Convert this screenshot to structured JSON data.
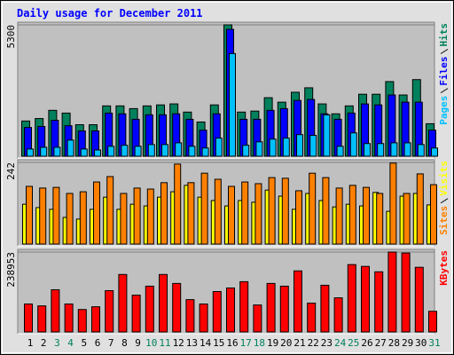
{
  "chart_data": {
    "type": "bar",
    "title": "Daily usage for December 2011",
    "categories": [
      "1",
      "2",
      "3",
      "4",
      "5",
      "6",
      "7",
      "8",
      "9",
      "10",
      "11",
      "12",
      "13",
      "14",
      "15",
      "16",
      "17",
      "18",
      "19",
      "20",
      "21",
      "22",
      "23",
      "24",
      "25",
      "26",
      "27",
      "28",
      "29",
      "30",
      "31"
    ],
    "category_colors": [
      "#000000",
      "#000000",
      "#00805c",
      "#00805c",
      "#000000",
      "#000000",
      "#000000",
      "#000000",
      "#000000",
      "#00805c",
      "#00805c",
      "#000000",
      "#000000",
      "#000000",
      "#000000",
      "#000000",
      "#00805c",
      "#00805c",
      "#000000",
      "#000000",
      "#000000",
      "#000000",
      "#000000",
      "#00805c",
      "#00805c",
      "#000000",
      "#000000",
      "#000000",
      "#000000",
      "#000000",
      "#00805c"
    ],
    "panels": [
      {
        "ylim": [
          0,
          5300
        ],
        "yticks": [
          5300
        ],
        "series": [
          {
            "name": "Pages",
            "color": "#00c0ff",
            "values": [
              290,
              360,
              360,
              650,
              290,
              250,
              400,
              440,
              400,
              470,
              470,
              540,
              400,
              330,
              730,
              4140,
              440,
              580,
              690,
              730,
              870,
              840,
              1670,
              400,
              940,
              510,
              510,
              540,
              540,
              470,
              330
            ]
          },
          {
            "name": "Files",
            "color": "#0000ff",
            "values": [
              1160,
              1200,
              1450,
              1230,
              1020,
              1020,
              1740,
              1710,
              1490,
              1670,
              1670,
              1710,
              1490,
              1050,
              1710,
              5120,
              1490,
              1490,
              1850,
              1920,
              2250,
              2290,
              1710,
              1490,
              1740,
              2110,
              2070,
              2470,
              2180,
              2180,
              1050
            ]
          },
          {
            "name": "Hits",
            "color": "#00805c",
            "values": [
              1420,
              1520,
              1850,
              1740,
              1270,
              1270,
              2030,
              2030,
              1920,
              2030,
              2070,
              2110,
              1780,
              1380,
              2070,
              5300,
              1780,
              1820,
              2360,
              2180,
              2580,
              2760,
              2110,
              1710,
              2030,
              2500,
              2500,
              3010,
              2470,
              3090,
              1310
            ]
          }
        ]
      },
      {
        "ylim": [
          0,
          242
        ],
        "yticks": [
          242
        ],
        "series": [
          {
            "name": "Sites",
            "color": "#ff8000",
            "values": [
              171,
              166,
              168,
              150,
              155,
              184,
              200,
              150,
              166,
              163,
              182,
              237,
              182,
              210,
              192,
              171,
              184,
              179,
              197,
              195,
              158,
              210,
              197,
              166,
              174,
              168,
              150,
              240,
              150,
              208,
              176
            ]
          },
          {
            "name": "Visits",
            "color": "#ffff00",
            "values": [
              118,
              108,
              103,
              79,
              74,
              103,
              139,
              103,
              118,
              113,
              139,
              155,
              174,
              139,
              129,
              113,
              129,
              124,
              160,
              142,
              103,
              150,
              129,
              110,
              118,
              113,
              153,
              97,
              142,
              150,
              116
            ]
          }
        ]
      },
      {
        "ylim": [
          0,
          238953
        ],
        "yticks": [
          238953
        ],
        "series": [
          {
            "name": "KBytes",
            "color": "#ff0000",
            "values": [
              83500,
              77900,
              126200,
              83500,
              67100,
              75200,
              123500,
              171800,
              110100,
              136900,
              171800,
              145000,
              96600,
              83500,
              120800,
              131500,
              150300,
              80600,
              145000,
              136900,
              182600,
              86100,
              139600,
              102000,
              201400,
              196000,
              179900,
              238953,
              236000,
              193300,
              61700
            ]
          }
        ]
      }
    ]
  }
}
